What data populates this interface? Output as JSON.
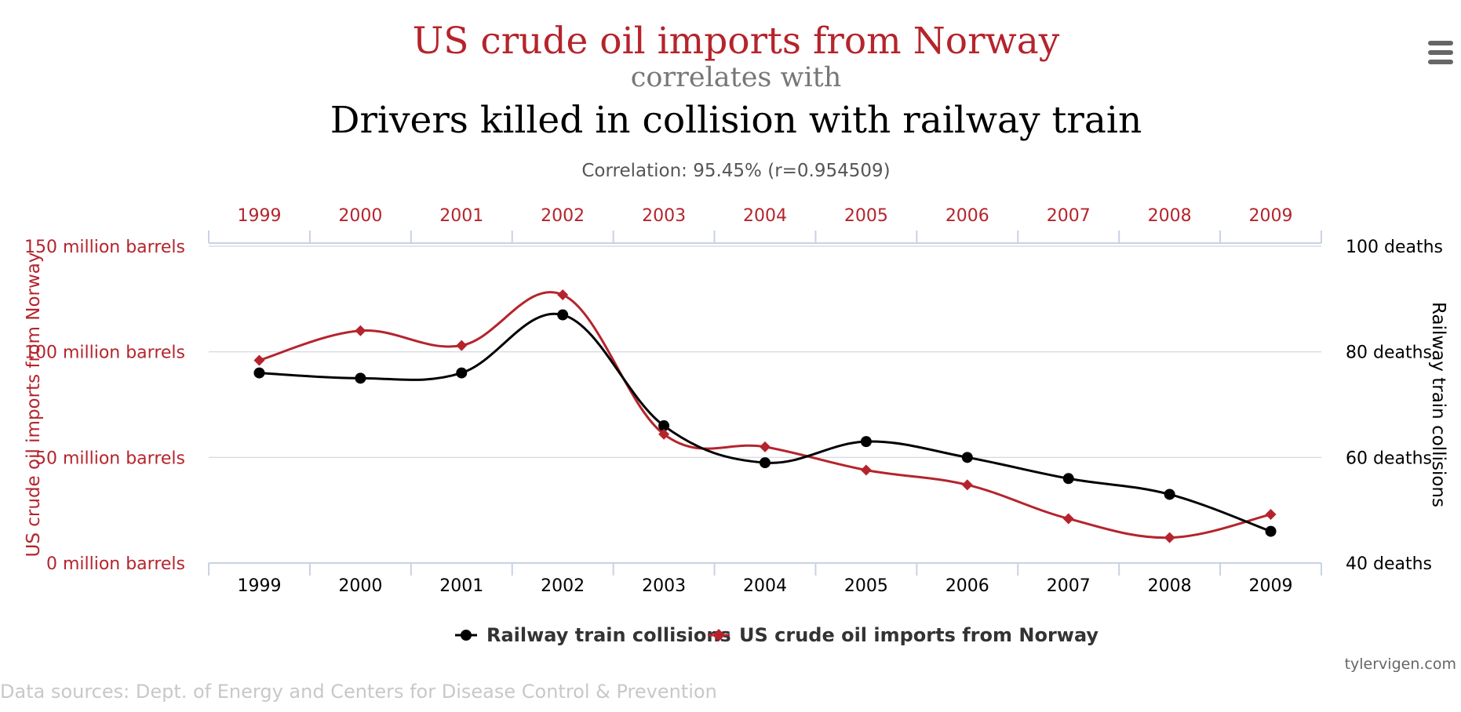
{
  "header": {
    "title_a": "US crude oil imports from Norway",
    "correlates": "correlates with",
    "title_b": "Drivers killed in collision with railway train",
    "correlation": "Correlation: 95.45% (r=0.954509)"
  },
  "menu": {
    "icon": "hamburger-menu-icon"
  },
  "colors": {
    "red": "#b5242c",
    "black": "#000000",
    "gray": "#777777",
    "grid": "#cfd6e0",
    "axis": "#c8d2e6"
  },
  "chart_data": {
    "type": "line",
    "x": [
      1999,
      2000,
      2001,
      2002,
      2003,
      2004,
      2005,
      2006,
      2007,
      2008,
      2009
    ],
    "x_tick_labels": [
      "1999",
      "2000",
      "2001",
      "2002",
      "2003",
      "2004",
      "2005",
      "2006",
      "2007",
      "2008",
      "2009"
    ],
    "series": [
      {
        "name": "Railway train collisions",
        "axis": "right",
        "color": "#000000",
        "marker": "circle",
        "values": [
          76,
          75,
          76,
          87,
          66,
          59,
          63,
          60,
          56,
          53,
          46
        ]
      },
      {
        "name": "US crude oil imports from Norway",
        "axis": "left",
        "color": "#b5242c",
        "marker": "diamond",
        "values": [
          96,
          110,
          103,
          127,
          61,
          55,
          44,
          37,
          21,
          12,
          23
        ]
      }
    ],
    "left_axis": {
      "label": "US crude oil imports from Norway",
      "ylim": [
        0,
        150
      ],
      "ticks": [
        0,
        50,
        100,
        150
      ],
      "tick_labels": [
        "0 million barrels",
        "50 million barrels",
        "100 million barrels",
        "150 million barrels"
      ]
    },
    "right_axis": {
      "label": "Railway train collisions",
      "ylim": [
        40,
        100
      ],
      "ticks": [
        40,
        60,
        80,
        100
      ],
      "tick_labels": [
        "40 deaths",
        "60 deaths",
        "80 deaths",
        "100 deaths"
      ]
    },
    "grid": true,
    "legend": "bottom-center"
  },
  "credit": "tylervigen.com",
  "sources": "Data sources: Dept. of Energy and Centers for Disease Control & Prevention"
}
